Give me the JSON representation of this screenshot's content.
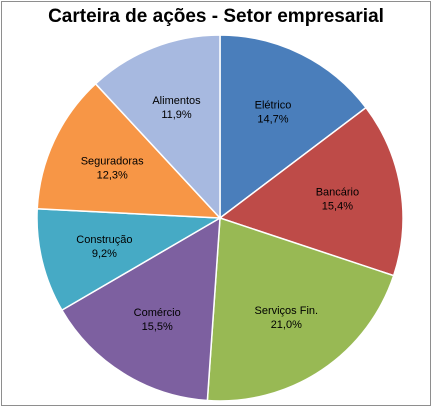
{
  "chart_data": {
    "type": "pie",
    "title": "Carteira de ações - Setor empresarial",
    "start": "12 o'clock, clockwise",
    "slices": [
      {
        "label": "Elétrico",
        "value": 14.7,
        "value_label": "14,7%",
        "color": "#4a7ebb"
      },
      {
        "label": "Bancário",
        "value": 15.4,
        "value_label": "15,4%",
        "color": "#be4b48"
      },
      {
        "label": "Serviços Fin.",
        "value": 21.0,
        "value_label": "21,0%",
        "color": "#98b954"
      },
      {
        "label": "Comércio",
        "value": 15.5,
        "value_label": "15,5%",
        "color": "#7d60a0"
      },
      {
        "label": "Construção",
        "value": 9.2,
        "value_label": "9,2%",
        "color": "#46aac5"
      },
      {
        "label": "Seguradoras",
        "value": 12.3,
        "value_label": "12,3%",
        "color": "#f79646"
      },
      {
        "label": "Alimentos",
        "value": 11.9,
        "value_label": "11,9%",
        "color": "#a7b9e0"
      }
    ]
  }
}
